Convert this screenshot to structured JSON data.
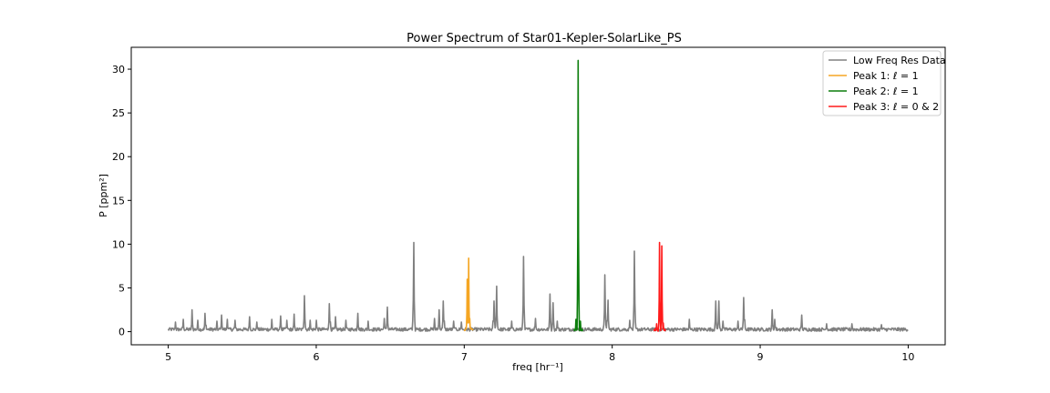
{
  "chart_data": {
    "type": "line",
    "title": "Power Spectrum of Star01-Kepler-SolarLike_PS",
    "xlabel": "freq [hr⁻¹]",
    "ylabel": "P [ppm²]",
    "xlim": [
      4.75,
      10.25
    ],
    "ylim": [
      -1.5,
      32.5
    ],
    "xticks": [
      5,
      6,
      7,
      8,
      9,
      10
    ],
    "yticks": [
      0,
      5,
      10,
      15,
      20,
      25,
      30
    ],
    "grid": false,
    "legend_position": "top-right",
    "noise_floor": 0.3,
    "series": [
      {
        "name": "Low Freq Res Data",
        "color": "#808080",
        "x_range": [
          5.0,
          10.0
        ],
        "peaks": [
          [
            5.05,
            1.1
          ],
          [
            5.1,
            1.4
          ],
          [
            5.16,
            2.5
          ],
          [
            5.2,
            1.3
          ],
          [
            5.25,
            2.1
          ],
          [
            5.33,
            1.2
          ],
          [
            5.36,
            1.9
          ],
          [
            5.4,
            1.4
          ],
          [
            5.45,
            1.3
          ],
          [
            5.55,
            1.7
          ],
          [
            5.6,
            1.1
          ],
          [
            5.7,
            1.4
          ],
          [
            5.76,
            1.8
          ],
          [
            5.8,
            1.3
          ],
          [
            5.85,
            2.0
          ],
          [
            5.92,
            4.1
          ],
          [
            5.96,
            1.3
          ],
          [
            6.0,
            1.3
          ],
          [
            6.09,
            3.2
          ],
          [
            6.13,
            1.7
          ],
          [
            6.2,
            1.3
          ],
          [
            6.28,
            2.1
          ],
          [
            6.35,
            1.2
          ],
          [
            6.46,
            1.5
          ],
          [
            6.48,
            2.8
          ],
          [
            6.66,
            10.2
          ],
          [
            6.8,
            1.5
          ],
          [
            6.83,
            2.5
          ],
          [
            6.86,
            3.5
          ],
          [
            6.93,
            1.2
          ],
          [
            6.98,
            1.1
          ],
          [
            7.2,
            3.5
          ],
          [
            7.22,
            5.2
          ],
          [
            7.32,
            1.2
          ],
          [
            7.4,
            8.6
          ],
          [
            7.48,
            1.5
          ],
          [
            7.58,
            4.3
          ],
          [
            7.6,
            3.3
          ],
          [
            7.63,
            1.2
          ],
          [
            7.95,
            6.5
          ],
          [
            7.97,
            3.6
          ],
          [
            8.12,
            1.3
          ],
          [
            8.15,
            9.2
          ],
          [
            8.52,
            1.4
          ],
          [
            8.7,
            3.5
          ],
          [
            8.72,
            3.5
          ],
          [
            8.75,
            1.2
          ],
          [
            8.85,
            1.2
          ],
          [
            8.89,
            3.9
          ],
          [
            9.08,
            2.5
          ],
          [
            9.1,
            1.4
          ],
          [
            9.28,
            1.9
          ],
          [
            9.45,
            0.9
          ],
          [
            9.62,
            0.9
          ],
          [
            9.82,
            0.8
          ]
        ]
      },
      {
        "name": "Peak 1: ℓ = 1",
        "color": "#f5a623",
        "x_range": [
          7.0,
          7.06
        ],
        "peaks": [
          [
            7.021,
            6.0
          ],
          [
            7.03,
            8.4
          ],
          [
            7.037,
            1.5
          ]
        ]
      },
      {
        "name": "Peak 2: ℓ = 1",
        "color": "#0b7d0b",
        "x_range": [
          7.74,
          7.8
        ],
        "peaks": [
          [
            7.755,
            1.4
          ],
          [
            7.771,
            31.0
          ],
          [
            7.785,
            1.2
          ]
        ]
      },
      {
        "name": "Peak 3: ℓ = 0 & 2",
        "color": "#ff1a1a",
        "x_range": [
          8.28,
          8.36
        ],
        "peaks": [
          [
            8.3,
            0.9
          ],
          [
            8.32,
            10.2
          ],
          [
            8.335,
            9.8
          ],
          [
            8.345,
            1.0
          ]
        ]
      }
    ]
  }
}
